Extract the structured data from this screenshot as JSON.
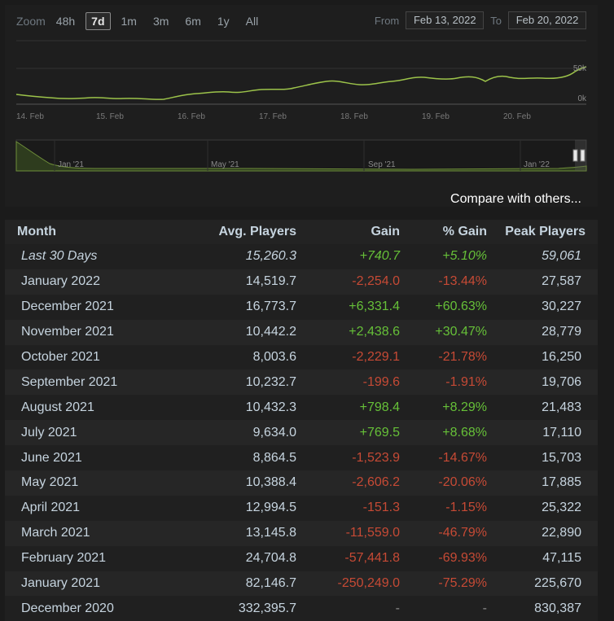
{
  "zoom": {
    "label": "Zoom",
    "options": [
      "48h",
      "7d",
      "1m",
      "3m",
      "6m",
      "1y",
      "All"
    ],
    "active": "7d"
  },
  "range": {
    "from_label": "From",
    "from_value": "Feb 13, 2022",
    "to_label": "To",
    "to_value": "Feb 20, 2022"
  },
  "main_chart": {
    "y_ticks": [
      "50k",
      "0k"
    ],
    "x_ticks": [
      "14. Feb",
      "15. Feb",
      "16. Feb",
      "17. Feb",
      "18. Feb",
      "19. Feb",
      "20. Feb"
    ],
    "line_color": "#9cc34a"
  },
  "navigator": {
    "x_ticks": [
      "Jan '21",
      "May '21",
      "Sep '21",
      "Jan '22"
    ]
  },
  "compare_link": "Compare with others...",
  "table": {
    "headers": [
      "Month",
      "Avg. Players",
      "Gain",
      "% Gain",
      "Peak Players"
    ],
    "rows": [
      {
        "month": "Last 30 Days",
        "avg": "15,260.3",
        "gain": "+740.7",
        "pct": "+5.10%",
        "peak": "59,061",
        "trend": "pos",
        "italic": true
      },
      {
        "month": "January 2022",
        "avg": "14,519.7",
        "gain": "-2,254.0",
        "pct": "-13.44%",
        "peak": "27,587",
        "trend": "neg"
      },
      {
        "month": "December 2021",
        "avg": "16,773.7",
        "gain": "+6,331.4",
        "pct": "+60.63%",
        "peak": "30,227",
        "trend": "pos"
      },
      {
        "month": "November 2021",
        "avg": "10,442.2",
        "gain": "+2,438.6",
        "pct": "+30.47%",
        "peak": "28,779",
        "trend": "pos"
      },
      {
        "month": "October 2021",
        "avg": "8,003.6",
        "gain": "-2,229.1",
        "pct": "-21.78%",
        "peak": "16,250",
        "trend": "neg"
      },
      {
        "month": "September 2021",
        "avg": "10,232.7",
        "gain": "-199.6",
        "pct": "-1.91%",
        "peak": "19,706",
        "trend": "neg"
      },
      {
        "month": "August 2021",
        "avg": "10,432.3",
        "gain": "+798.4",
        "pct": "+8.29%",
        "peak": "21,483",
        "trend": "pos"
      },
      {
        "month": "July 2021",
        "avg": "9,634.0",
        "gain": "+769.5",
        "pct": "+8.68%",
        "peak": "17,110",
        "trend": "pos"
      },
      {
        "month": "June 2021",
        "avg": "8,864.5",
        "gain": "-1,523.9",
        "pct": "-14.67%",
        "peak": "15,703",
        "trend": "neg"
      },
      {
        "month": "May 2021",
        "avg": "10,388.4",
        "gain": "-2,606.2",
        "pct": "-20.06%",
        "peak": "17,885",
        "trend": "neg"
      },
      {
        "month": "April 2021",
        "avg": "12,994.5",
        "gain": "-151.3",
        "pct": "-1.15%",
        "peak": "25,322",
        "trend": "neg"
      },
      {
        "month": "March 2021",
        "avg": "13,145.8",
        "gain": "-11,559.0",
        "pct": "-46.79%",
        "peak": "22,890",
        "trend": "neg"
      },
      {
        "month": "February 2021",
        "avg": "24,704.8",
        "gain": "-57,441.8",
        "pct": "-69.93%",
        "peak": "47,115",
        "trend": "neg"
      },
      {
        "month": "January 2021",
        "avg": "82,146.7",
        "gain": "-250,249.0",
        "pct": "-75.29%",
        "peak": "225,670",
        "trend": "neg"
      },
      {
        "month": "December 2020",
        "avg": "332,395.7",
        "gain": "-",
        "pct": "-",
        "peak": "830,387",
        "trend": "neutral"
      }
    ]
  }
}
